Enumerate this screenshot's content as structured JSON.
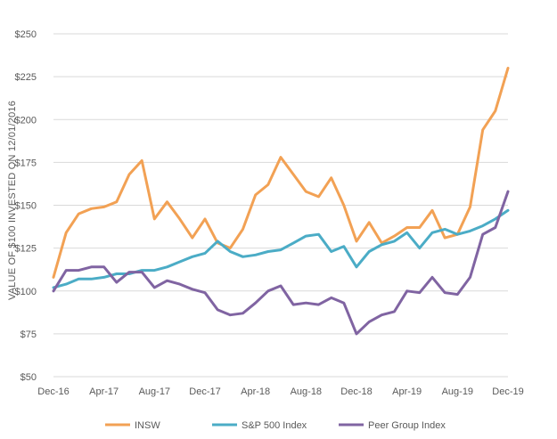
{
  "chart_data": {
    "type": "line",
    "title": "",
    "xlabel": "",
    "ylabel": "VALUE OF $100 INVESTED ON 12/01/2016",
    "ylim": [
      50,
      250
    ],
    "y_ticks": [
      50,
      75,
      100,
      125,
      150,
      175,
      200,
      225,
      250
    ],
    "y_tick_labels": [
      "$50",
      "$75",
      "$100",
      "$125",
      "$150",
      "$175",
      "$200",
      "$225",
      "$250"
    ],
    "x_tick_labels": [
      "Dec-16",
      "Apr-17",
      "Aug-17",
      "Dec-17",
      "Apr-18",
      "Aug-18",
      "Dec-18",
      "Apr-19",
      "Aug-19",
      "Dec-19"
    ],
    "x_tick_every": 4,
    "grid": true,
    "legend_position": "bottom",
    "categories": [
      "Dec-16",
      "Jan-17",
      "Feb-17",
      "Mar-17",
      "Apr-17",
      "May-17",
      "Jun-17",
      "Jul-17",
      "Aug-17",
      "Sep-17",
      "Oct-17",
      "Nov-17",
      "Dec-17",
      "Jan-18",
      "Feb-18",
      "Mar-18",
      "Apr-18",
      "May-18",
      "Jun-18",
      "Jul-18",
      "Aug-18",
      "Sep-18",
      "Oct-18",
      "Nov-18",
      "Dec-18",
      "Jan-19",
      "Feb-19",
      "Mar-19",
      "Apr-19",
      "May-19",
      "Jun-19",
      "Jul-19",
      "Aug-19",
      "Sep-19",
      "Oct-19",
      "Nov-19",
      "Dec-19"
    ],
    "series": [
      {
        "name": "INSW",
        "color": "#F2A154",
        "values": [
          108,
          134,
          145,
          148,
          149,
          152,
          168,
          176,
          142,
          152,
          142,
          131,
          142,
          128,
          125,
          136,
          156,
          162,
          178,
          168,
          158,
          155,
          166,
          150,
          129,
          140,
          128,
          132,
          137,
          137,
          147,
          131,
          133,
          149,
          194,
          205,
          230
        ]
      },
      {
        "name": "S&P 500 Index",
        "color": "#4BACC6",
        "values": [
          102,
          104,
          107,
          107,
          108,
          110,
          110,
          112,
          112,
          114,
          117,
          120,
          122,
          129,
          123,
          120,
          121,
          123,
          124,
          128,
          132,
          133,
          123,
          126,
          114,
          123,
          127,
          129,
          134,
          125,
          134,
          136,
          133,
          135,
          138,
          142,
          147
        ]
      },
      {
        "name": "Peer Group Index",
        "color": "#8064A2",
        "values": [
          100,
          112,
          112,
          114,
          114,
          105,
          111,
          111,
          102,
          106,
          104,
          101,
          99,
          89,
          86,
          87,
          93,
          100,
          103,
          92,
          93,
          92,
          96,
          93,
          75,
          82,
          86,
          88,
          100,
          99,
          108,
          99,
          98,
          108,
          133,
          137,
          158
        ]
      }
    ]
  }
}
